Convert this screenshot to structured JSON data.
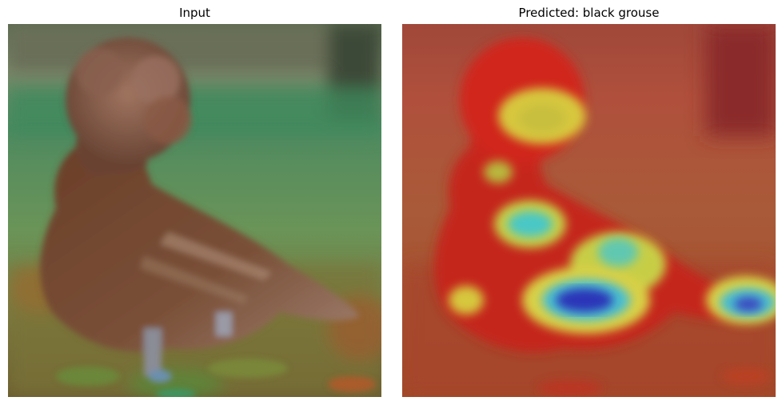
{
  "figure": {
    "left_panel": {
      "title": "Input",
      "content": "photo of a brown frizzle-crested chicken standing on grass with blurred background"
    },
    "right_panel": {
      "title": "Predicted: black grouse",
      "content": "same photo with a jet-colormap attention heatmap overlay"
    }
  },
  "colors": {
    "background": "#ffffff",
    "grass": "#5f8a54",
    "bird_brown": "#6b4330",
    "heat_red": "#c0281c",
    "heat_yellow": "#e6e64a",
    "heat_cyan": "#48c6c6",
    "heat_blue": "#2a2ab4"
  }
}
